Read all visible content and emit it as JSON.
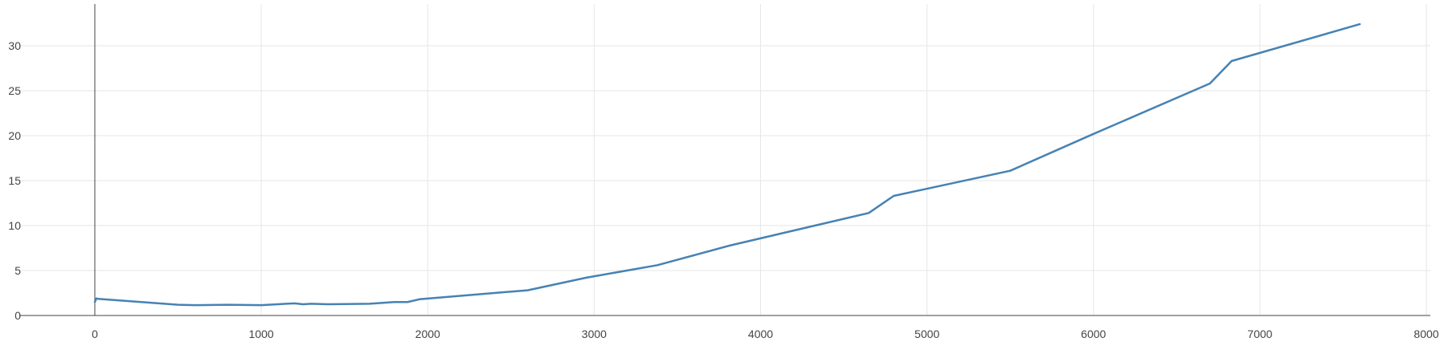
{
  "chart_data": {
    "type": "line",
    "title": "",
    "xlabel": "",
    "ylabel": "",
    "xlim": [
      -450,
      8050
    ],
    "ylim": [
      0,
      35
    ],
    "x_ticks": [
      0,
      1000,
      2000,
      3000,
      4000,
      5000,
      6000,
      7000,
      8000
    ],
    "y_ticks": [
      0,
      5,
      10,
      15,
      20,
      25,
      30
    ],
    "grid": true,
    "legend": "none",
    "line_color": "#4682b4",
    "series": [
      {
        "x": [
          0,
          10,
          20,
          500,
          600,
          800,
          1000,
          1100,
          1150,
          1200,
          1250,
          1300,
          1400,
          1500,
          1650,
          1800,
          1880,
          1950,
          2600,
          2950,
          3380,
          3820,
          4650,
          4800,
          5500,
          6000,
          6700,
          6830,
          7600
        ],
        "values": [
          1.5,
          1.9,
          1.85,
          1.2,
          1.15,
          1.2,
          1.15,
          1.25,
          1.3,
          1.35,
          1.25,
          1.3,
          1.25,
          1.28,
          1.3,
          1.5,
          1.5,
          1.8,
          2.8,
          4.2,
          5.6,
          7.8,
          11.4,
          13.3,
          16.1,
          20.2,
          25.8,
          28.3,
          32.4
        ]
      }
    ]
  }
}
